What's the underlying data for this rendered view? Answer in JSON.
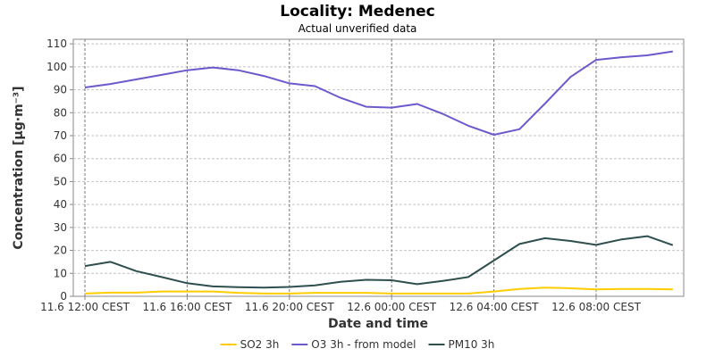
{
  "chart_data": {
    "type": "line",
    "title": "Locality: Medenec",
    "subtitle": "Actual unverified data",
    "xlabel": "Date and time",
    "ylabel": "Concentration [µg·m⁻³]",
    "ylim": [
      0,
      112
    ],
    "yticks": [
      0,
      10,
      20,
      30,
      40,
      50,
      60,
      70,
      80,
      90,
      100,
      110
    ],
    "grid": true,
    "legend_position": "bottom",
    "xticks": [
      {
        "hour": 0,
        "label": "11.6 12:00 CEST"
      },
      {
        "hour": 4,
        "label": "11.6 16:00 CEST"
      },
      {
        "hour": 8,
        "label": "11.6 20:00 CEST"
      },
      {
        "hour": 12,
        "label": "12.6 00:00 CEST"
      },
      {
        "hour": 16,
        "label": "12.6 04:00 CEST"
      },
      {
        "hour": 20,
        "label": "12.6 08:00 CEST"
      }
    ],
    "x": [
      "11.6 12:00",
      "11.6 13:00",
      "11.6 14:00",
      "11.6 15:00",
      "11.6 16:00",
      "11.6 17:00",
      "11.6 18:00",
      "11.6 19:00",
      "11.6 20:00",
      "11.6 21:00",
      "11.6 22:00",
      "11.6 23:00",
      "12.6 00:00",
      "12.6 01:00",
      "12.6 02:00",
      "12.6 03:00",
      "12.6 04:00",
      "12.6 05:00",
      "12.6 06:00",
      "12.6 07:00",
      "12.6 08:00",
      "12.6 09:00",
      "12.6 10:00",
      "12.6 11:00"
    ],
    "series": [
      {
        "name": "SO2 3h",
        "color": "#ffcc00",
        "values": [
          1.2,
          1.6,
          1.6,
          2.1,
          2.1,
          2.1,
          1.5,
          1.2,
          1.2,
          1.5,
          1.5,
          1.5,
          1.2,
          1.2,
          1.2,
          1.2,
          2.1,
          3.2,
          3.8,
          3.5,
          3.0,
          3.2,
          3.2,
          3.0
        ]
      },
      {
        "name": "O3 3h - from model",
        "color": "#6a5acd",
        "values": [
          91.0,
          92.5,
          94.5,
          96.5,
          98.5,
          99.7,
          98.5,
          96.0,
          92.8,
          91.6,
          86.5,
          82.6,
          82.2,
          83.8,
          79.5,
          74.3,
          70.4,
          72.8,
          84.0,
          95.6,
          103.0,
          104.2,
          105.0,
          106.7
        ]
      },
      {
        "name": "PM10 3h",
        "color": "#2f4f4f",
        "values": [
          13.2,
          15.0,
          11.0,
          8.4,
          5.7,
          4.3,
          4.0,
          3.8,
          4.1,
          4.8,
          6.3,
          7.2,
          7.0,
          5.3,
          6.7,
          8.4,
          15.6,
          22.8,
          25.3,
          24.1,
          22.4,
          24.8,
          26.2,
          22.3
        ]
      }
    ]
  }
}
